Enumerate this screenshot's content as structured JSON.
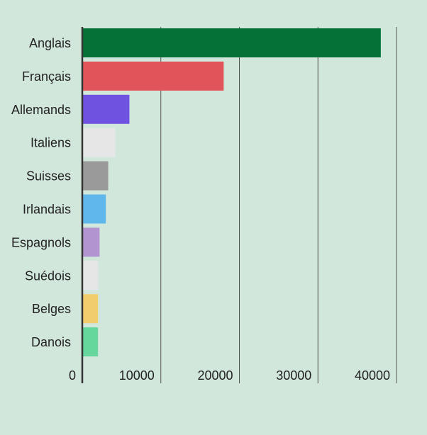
{
  "chart_data": {
    "type": "bar",
    "orientation": "horizontal",
    "categories": [
      "Anglais",
      "Français",
      "Allemands",
      "Italiens",
      "Suisses",
      "Irlandais",
      "Espagnols",
      "Suédois",
      "Belges",
      "Danois"
    ],
    "values": [
      38000,
      18000,
      6000,
      4200,
      3300,
      3000,
      2200,
      2000,
      2000,
      2000
    ],
    "colors": [
      "#067136",
      "#e0545a",
      "#6f52e0",
      "#e6e6e6",
      "#9a9a9a",
      "#5fb7ea",
      "#b295d0",
      "#e6e6e6",
      "#f2cd6e",
      "#65d69c"
    ],
    "xlim": [
      0,
      40000
    ],
    "xticks": [
      0,
      10000,
      20000,
      30000,
      40000
    ],
    "xtick_labels": [
      "0",
      "10000",
      "20000",
      "30000",
      "40000"
    ],
    "grid": true,
    "title": "",
    "xlabel": "",
    "ylabel": ""
  }
}
